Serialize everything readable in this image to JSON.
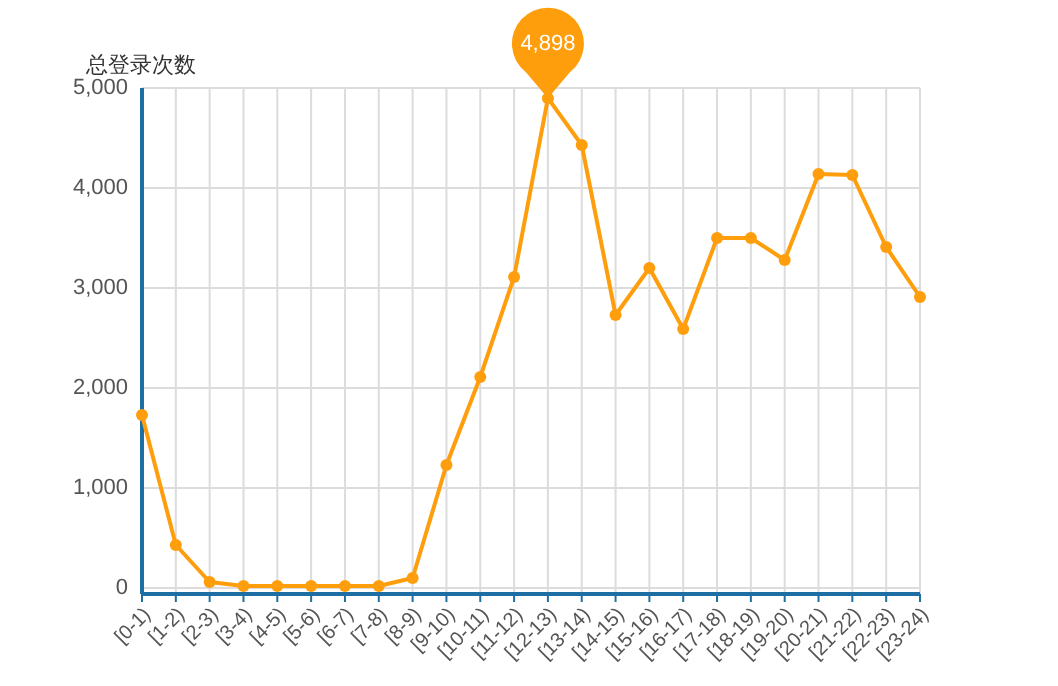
{
  "chart_data": {
    "type": "line",
    "ylabel": "总登录次数",
    "categories": [
      "[0-1)",
      "[1-2)",
      "[2-3)",
      "[3-4)",
      "[4-5)",
      "[5-6)",
      "[6-7)",
      "[7-8)",
      "[8-9)",
      "[9-10)",
      "[10-11)",
      "[11-12)",
      "[12-13)",
      "[13-14)",
      "[14-15)",
      "[15-16)",
      "[16-17)",
      "[17-18)",
      "[18-19)",
      "[19-20)",
      "[20-21)",
      "[21-22)",
      "[22-23)",
      "[23-24)"
    ],
    "series": [
      {
        "color": "#ff9e0d",
        "values": [
          1730,
          430,
          60,
          20,
          20,
          20,
          20,
          20,
          100,
          1230,
          2110,
          3110,
          4898,
          4430,
          2730,
          3200,
          2590,
          3500,
          3500,
          3280,
          4140,
          4130,
          3410,
          2910
        ]
      }
    ],
    "ylim": [
      -60,
      5000
    ],
    "yticks": [
      {
        "value": 0,
        "label": "0"
      },
      {
        "value": 1000,
        "label": "1,000"
      },
      {
        "value": 2000,
        "label": "2,000"
      },
      {
        "value": 3000,
        "label": "3,000"
      },
      {
        "value": 4000,
        "label": "4,000"
      },
      {
        "value": 5000,
        "label": "5,000"
      }
    ],
    "grid": true,
    "marker": "circle",
    "line_style": "solid",
    "annotations": [
      {
        "text": "4,898",
        "x": "[12-13)",
        "y": 4898
      }
    ]
  }
}
